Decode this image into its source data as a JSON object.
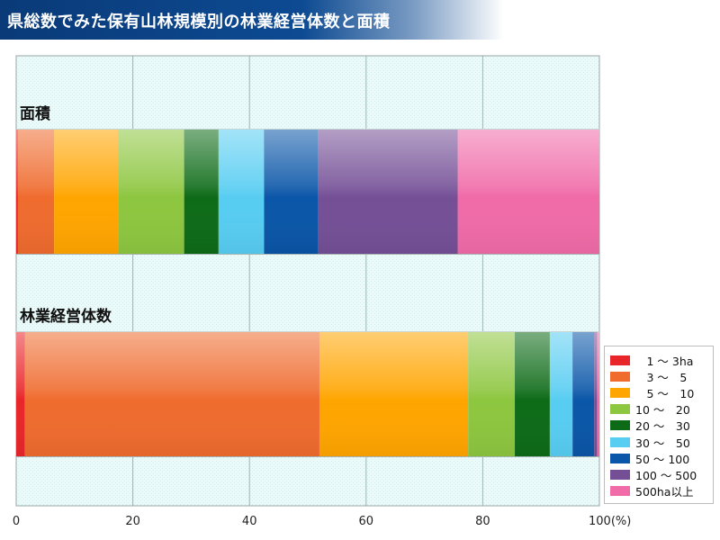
{
  "title": "県総数でみた保有山林規模別の林業経営体数と面積",
  "chart_data": {
    "type": "bar",
    "orientation": "horizontal",
    "stacked": "percent",
    "categories": [
      "面積",
      "林業経営体数"
    ],
    "series": [
      {
        "name": "　1 ～ 3ha",
        "color": "#e8262a",
        "values": [
          0.3,
          1.5
        ]
      },
      {
        "name": "　3 ～　5",
        "color": "#ef6b2e",
        "values": [
          6.2,
          50.5
        ]
      },
      {
        "name": "　5 ～　10",
        "color": "#ffa500",
        "values": [
          11.0,
          25.5
        ]
      },
      {
        "name": "10 ～　20",
        "color": "#8dc63f",
        "values": [
          11.3,
          8.0
        ]
      },
      {
        "name": "20 ～　30",
        "color": "#0d6b17",
        "values": [
          5.9,
          6.0
        ]
      },
      {
        "name": "30 ～　50",
        "color": "#57cdf2",
        "values": [
          7.8,
          3.9
        ]
      },
      {
        "name": "50 ～ 100",
        "color": "#0a56a8",
        "values": [
          9.2,
          3.7
        ]
      },
      {
        "name": "100 ～ 500",
        "color": "#744f96",
        "values": [
          24.0,
          0.5
        ]
      },
      {
        "name": "500ha以上",
        "color": "#f06ba8",
        "values": [
          24.3,
          0.4
        ]
      }
    ],
    "xaxis": {
      "ticks": [
        "0",
        "20",
        "40",
        "60",
        "80",
        "100(%)"
      ],
      "tick_values": [
        0,
        20,
        40,
        60,
        80,
        100
      ],
      "range": [
        0,
        100
      ]
    },
    "grid": true,
    "legend_position": "bottom-right"
  }
}
